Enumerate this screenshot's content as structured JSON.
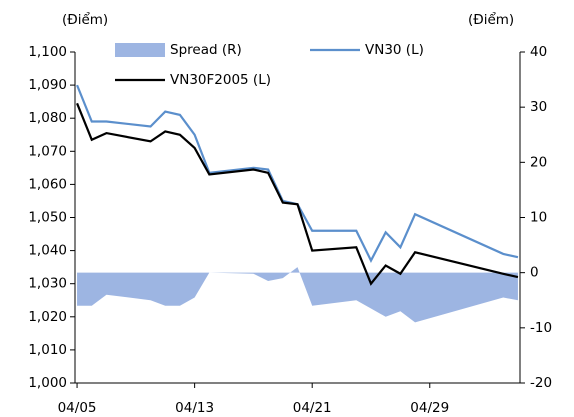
{
  "chart_data": {
    "type": "line",
    "ylabel": "(Điểm)",
    "y2label": "(Điểm)",
    "x": [
      5,
      6,
      7,
      10,
      11,
      12,
      13,
      14,
      17,
      18,
      19,
      20,
      21,
      24,
      25,
      26,
      27,
      28,
      34,
      35
    ],
    "xlim": [
      4.86,
      35.14
    ],
    "xticks": [
      {
        "value": 5,
        "label": "04/05"
      },
      {
        "value": 13,
        "label": "04/13"
      },
      {
        "value": 21,
        "label": "04/21"
      },
      {
        "value": 29,
        "label": "04/29"
      }
    ],
    "ylim": [
      1000,
      1100
    ],
    "yticks": [
      {
        "value": 1000,
        "label": "1,000"
      },
      {
        "value": 1010,
        "label": "1,010"
      },
      {
        "value": 1020,
        "label": "1,020"
      },
      {
        "value": 1030,
        "label": "1,030"
      },
      {
        "value": 1040,
        "label": "1,040"
      },
      {
        "value": 1050,
        "label": "1,050"
      },
      {
        "value": 1060,
        "label": "1,060"
      },
      {
        "value": 1070,
        "label": "1,070"
      },
      {
        "value": 1080,
        "label": "1,080"
      },
      {
        "value": 1090,
        "label": "1,090"
      },
      {
        "value": 1100,
        "label": "1,100"
      }
    ],
    "y2lim": [
      -20,
      40
    ],
    "y2ticks": [
      -20,
      -10,
      0,
      10,
      20,
      30,
      40
    ],
    "series": [
      {
        "name": "Spread (R)",
        "kind": "area",
        "axis": "y2",
        "color": "#9db5e2",
        "values": [
          -6,
          -6,
          -4,
          -5,
          -6,
          -6,
          -4.5,
          0,
          -0.2,
          -1.5,
          -1,
          1,
          -6,
          -5,
          -6.5,
          -8,
          -7,
          -9,
          -4.5,
          -5
        ]
      },
      {
        "name": "VN30 (L)",
        "kind": "line",
        "color": "#5b8fcc",
        "values": [
          1090,
          1079,
          1079,
          1077.5,
          1082,
          1081,
          1075,
          1063.5,
          1065,
          1064.5,
          1055,
          1054,
          1046,
          1046,
          1037,
          1045.5,
          1041,
          1051,
          1039,
          1038
        ]
      },
      {
        "name": "VN30F2005 (L)",
        "kind": "line",
        "color": "#000000",
        "values": [
          1084.5,
          1073.5,
          1075.5,
          1073,
          1076,
          1075,
          1071,
          1063,
          1064.5,
          1063.5,
          1054.5,
          1054,
          1040,
          1041,
          1030,
          1035.5,
          1033,
          1039.5,
          1033,
          1032
        ]
      }
    ]
  }
}
